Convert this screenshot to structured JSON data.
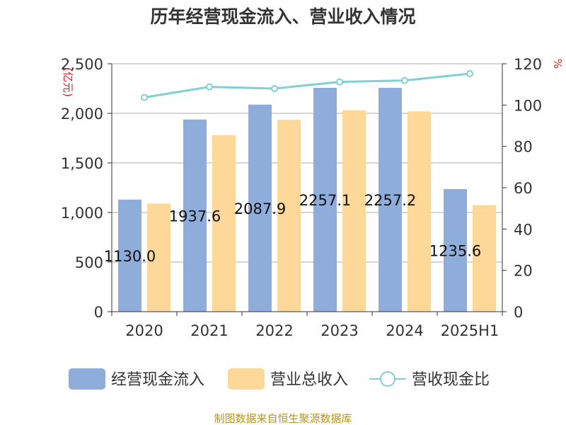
{
  "colors": {
    "series1": "#8eadda",
    "series2": "#fed899",
    "line": "#80d0d4",
    "grid": "#c8c8c8",
    "axis": "#333333",
    "unit": "#e02020",
    "source": "#b8941f"
  },
  "chart_data": {
    "type": "bar",
    "title": "历年经营现金流入、营业收入情况",
    "categories": [
      "2020",
      "2021",
      "2022",
      "2023",
      "2024",
      "2025H1"
    ],
    "y_left": {
      "label": "(亿元)",
      "range": [
        0,
        2500
      ],
      "ticks": [
        "0",
        "500",
        "1,000",
        "1,500",
        "2,000",
        "2,500"
      ]
    },
    "y_right": {
      "label": "%",
      "range": [
        0,
        120
      ],
      "ticks": [
        "0",
        "20",
        "40",
        "60",
        "80",
        "100",
        "120"
      ]
    },
    "grid": true,
    "legend_position": "bottom",
    "series": [
      {
        "name": "经营现金流入",
        "type": "bar",
        "axis": "left",
        "values": [
          1130.0,
          1937.6,
          2087.9,
          2257.1,
          2257.2,
          1235.6
        ],
        "labels": [
          "1130.0",
          "1937.6",
          "2087.9",
          "2257.1",
          "2257.2",
          "1235.6"
        ]
      },
      {
        "name": "营业总收入",
        "type": "bar",
        "axis": "left",
        "values": [
          1090,
          1780,
          1935,
          2030,
          2020,
          1075
        ]
      },
      {
        "name": "营收现金比",
        "type": "line",
        "axis": "right",
        "values": [
          103.7,
          108.8,
          108.0,
          111.2,
          111.9,
          115.2
        ]
      }
    ]
  },
  "source": "制图数据来自恒生聚源数据库"
}
